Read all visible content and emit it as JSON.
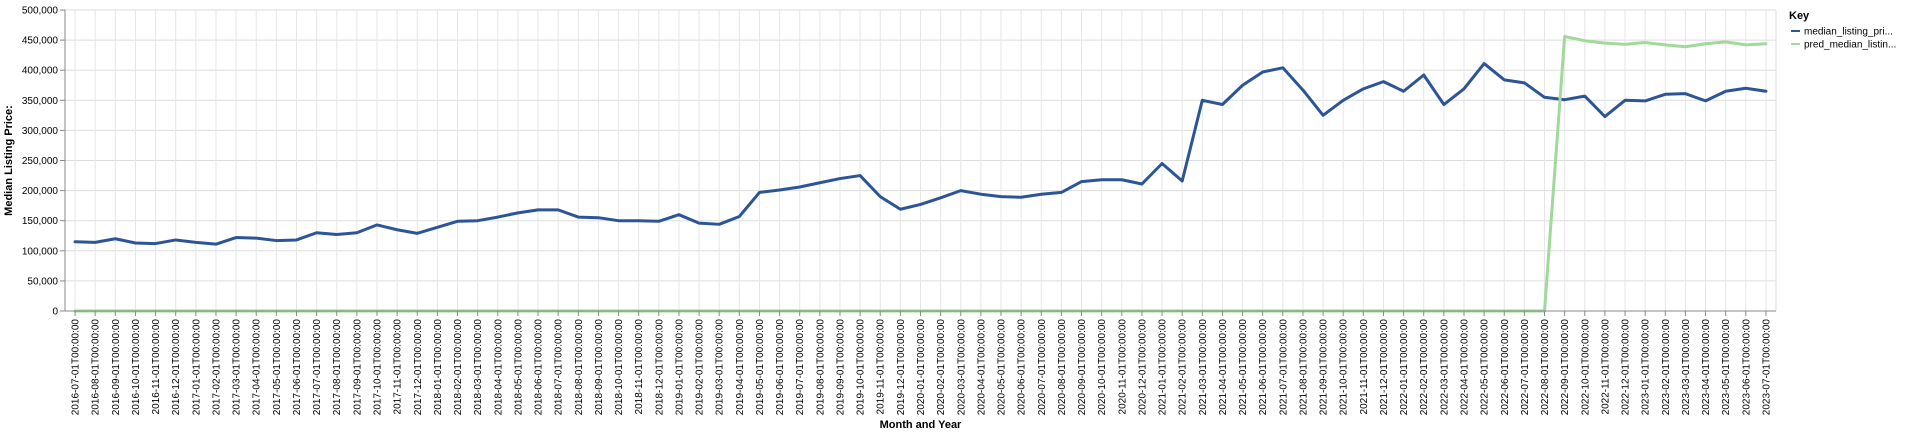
{
  "chart_data": {
    "type": "line",
    "xlabel": "Month and Year",
    "ylabel": "Median Listing Price:",
    "ylim": [
      0,
      500000
    ],
    "y_ticks": [
      "0",
      "50,000",
      "100,000",
      "150,000",
      "200,000",
      "250,000",
      "300,000",
      "350,000",
      "400,000",
      "450,000",
      "500,000"
    ],
    "y_tick_values": [
      0,
      50000,
      100000,
      150000,
      200000,
      250000,
      300000,
      350000,
      400000,
      450000,
      500000
    ],
    "grid": true,
    "legend": {
      "title": "Key",
      "position": "right"
    },
    "x": [
      "2016-07-01T00:00:00",
      "2016-08-01T00:00:00",
      "2016-09-01T00:00:00",
      "2016-10-01T00:00:00",
      "2016-11-01T00:00:00",
      "2016-12-01T00:00:00",
      "2017-01-01T00:00:00",
      "2017-02-01T00:00:00",
      "2017-03-01T00:00:00",
      "2017-04-01T00:00:00",
      "2017-05-01T00:00:00",
      "2017-06-01T00:00:00",
      "2017-07-01T00:00:00",
      "2017-08-01T00:00:00",
      "2017-09-01T00:00:00",
      "2017-10-01T00:00:00",
      "2017-11-01T00:00:00",
      "2017-12-01T00:00:00",
      "2018-01-01T00:00:00",
      "2018-02-01T00:00:00",
      "2018-03-01T00:00:00",
      "2018-04-01T00:00:00",
      "2018-05-01T00:00:00",
      "2018-06-01T00:00:00",
      "2018-07-01T00:00:00",
      "2018-08-01T00:00:00",
      "2018-09-01T00:00:00",
      "2018-10-01T00:00:00",
      "2018-11-01T00:00:00",
      "2018-12-01T00:00:00",
      "2019-01-01T00:00:00",
      "2019-02-01T00:00:00",
      "2019-03-01T00:00:00",
      "2019-04-01T00:00:00",
      "2019-05-01T00:00:00",
      "2019-06-01T00:00:00",
      "2019-07-01T00:00:00",
      "2019-08-01T00:00:00",
      "2019-09-01T00:00:00",
      "2019-10-01T00:00:00",
      "2019-11-01T00:00:00",
      "2019-12-01T00:00:00",
      "2020-01-01T00:00:00",
      "2020-02-01T00:00:00",
      "2020-03-01T00:00:00",
      "2020-04-01T00:00:00",
      "2020-05-01T00:00:00",
      "2020-06-01T00:00:00",
      "2020-07-01T00:00:00",
      "2020-08-01T00:00:00",
      "2020-09-01T00:00:00",
      "2020-10-01T00:00:00",
      "2020-11-01T00:00:00",
      "2020-12-01T00:00:00",
      "2021-01-01T00:00:00",
      "2021-02-01T00:00:00",
      "2021-03-01T00:00:00",
      "2021-04-01T00:00:00",
      "2021-05-01T00:00:00",
      "2021-06-01T00:00:00",
      "2021-07-01T00:00:00",
      "2021-08-01T00:00:00",
      "2021-09-01T00:00:00",
      "2021-10-01T00:00:00",
      "2021-11-01T00:00:00",
      "2021-12-01T00:00:00",
      "2022-01-01T00:00:00",
      "2022-02-01T00:00:00",
      "2022-03-01T00:00:00",
      "2022-04-01T00:00:00",
      "2022-05-01T00:00:00",
      "2022-06-01T00:00:00",
      "2022-07-01T00:00:00",
      "2022-08-01T00:00:00",
      "2022-09-01T00:00:00",
      "2022-10-01T00:00:00",
      "2022-11-01T00:00:00",
      "2022-12-01T00:00:00",
      "2023-01-01T00:00:00",
      "2023-02-01T00:00:00",
      "2023-03-01T00:00:00",
      "2023-04-01T00:00:00",
      "2023-05-01T00:00:00",
      "2023-06-01T00:00:00",
      "2023-07-01T00:00:00"
    ],
    "series": [
      {
        "name": "median_listing_pri...",
        "color": "#2c5597",
        "values": [
          115000,
          114000,
          120000,
          113000,
          112000,
          118000,
          114000,
          111000,
          122000,
          121000,
          117000,
          118000,
          130000,
          127000,
          130000,
          143000,
          135000,
          129000,
          139000,
          149000,
          150000,
          156000,
          163000,
          168000,
          168000,
          156000,
          155000,
          150000,
          150000,
          149000,
          160000,
          146000,
          144000,
          157000,
          197000,
          201000,
          206000,
          213000,
          220000,
          225000,
          190000,
          169000,
          177000,
          188000,
          200000,
          194000,
          190000,
          189000,
          194000,
          197000,
          215000,
          218000,
          218000,
          211000,
          245000,
          216000,
          350000,
          343000,
          375000,
          397000,
          404000,
          367000,
          325000,
          350000,
          369000,
          381000,
          365000,
          392000,
          343000,
          369000,
          411000,
          384000,
          379000,
          355000,
          351000,
          357000,
          323000,
          350000,
          349000,
          360000,
          361000,
          349000,
          365000,
          370000,
          365000
        ]
      },
      {
        "name": "pred_median_listin...",
        "color": "#a1d99b",
        "values": [
          0,
          0,
          0,
          0,
          0,
          0,
          0,
          0,
          0,
          0,
          0,
          0,
          0,
          0,
          0,
          0,
          0,
          0,
          0,
          0,
          0,
          0,
          0,
          0,
          0,
          0,
          0,
          0,
          0,
          0,
          0,
          0,
          0,
          0,
          0,
          0,
          0,
          0,
          0,
          0,
          0,
          0,
          0,
          0,
          0,
          0,
          0,
          0,
          0,
          0,
          0,
          0,
          0,
          0,
          0,
          0,
          0,
          0,
          0,
          0,
          0,
          0,
          0,
          0,
          0,
          0,
          0,
          0,
          0,
          0,
          0,
          0,
          0,
          0,
          456000,
          449000,
          445000,
          443000,
          446000,
          442000,
          439000,
          444000,
          447000,
          442000,
          444000
        ]
      }
    ]
  }
}
